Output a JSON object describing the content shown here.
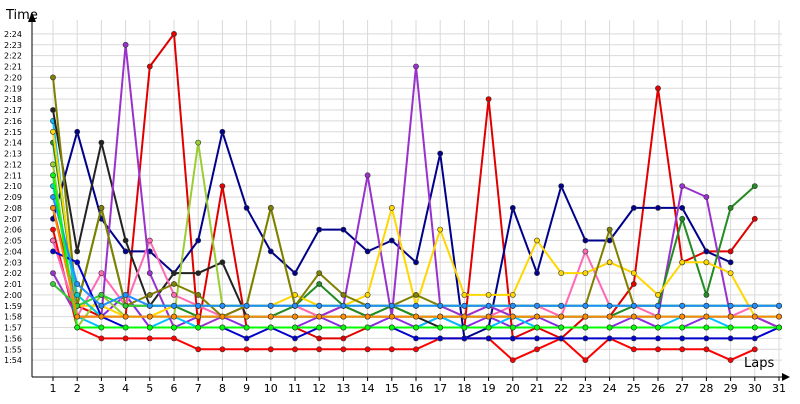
{
  "chart_data": {
    "type": "line",
    "title": "",
    "xlabel": "Laps",
    "ylabel": "Time",
    "x": [
      1,
      2,
      3,
      4,
      5,
      6,
      7,
      8,
      9,
      10,
      11,
      12,
      13,
      14,
      15,
      16,
      17,
      18,
      19,
      20,
      21,
      22,
      23,
      24,
      25,
      26,
      27,
      28,
      29,
      30,
      31
    ],
    "x_tick_labels": [
      "1",
      "2",
      "3",
      "4",
      "5",
      "6",
      "7",
      "8",
      "9",
      "10",
      "11",
      "12",
      "13",
      "14",
      "15",
      "16",
      "17",
      "18",
      "19",
      "20",
      "21",
      "22",
      "23",
      "24",
      "25",
      "26",
      "27",
      "28",
      "29",
      "30",
      "31"
    ],
    "y_unit": "seconds (lap time)",
    "y_tick_labels": [
      "1:54",
      "1:55",
      "1:56",
      "1:57",
      "1:58",
      "1:59",
      "2:00",
      "2:01",
      "2:02",
      "2:03",
      "2:04",
      "2:05",
      "2:06",
      "2:07",
      "2:08",
      "2:09",
      "2:10",
      "2:11",
      "2:12",
      "2:13",
      "2:14",
      "2:15",
      "2:16",
      "2:17",
      "2:18",
      "2:19",
      "2:20",
      "2:21",
      "2:22",
      "2:23",
      "2:24"
    ],
    "ylim": [
      113,
      145
    ],
    "grid": true,
    "legend": "none",
    "series": [
      {
        "color": "#e00000",
        "values": [
          128,
          119,
          118,
          118,
          141,
          144,
          117,
          130,
          117,
          117,
          117,
          116,
          116,
          117,
          117,
          117,
          117,
          117,
          138,
          116,
          117,
          116,
          118,
          118,
          121,
          139,
          123,
          124,
          124,
          127,
          null
        ]
      },
      {
        "color": "#ff0000",
        "values": [
          126,
          117,
          116,
          116,
          116,
          116,
          115,
          115,
          115,
          115,
          115,
          115,
          115,
          115,
          115,
          115,
          116,
          116,
          116,
          114,
          115,
          116,
          114,
          116,
          115,
          115,
          115,
          115,
          114,
          115,
          null
        ]
      },
      {
        "color": "#8a2be2",
        "values": [
          125,
          118,
          118,
          120,
          117,
          117,
          118,
          118,
          117,
          117,
          117,
          118,
          117,
          117,
          118,
          117,
          118,
          117,
          118,
          117,
          118,
          117,
          117,
          117,
          118,
          117,
          117,
          118,
          118,
          118,
          117
        ]
      },
      {
        "color": "#00bfff",
        "values": [
          136,
          118,
          117,
          117,
          117,
          118,
          117,
          117,
          117,
          117,
          117,
          117,
          117,
          117,
          117,
          117,
          118,
          117,
          117,
          118,
          117,
          117,
          117,
          117,
          117,
          117,
          118,
          118,
          117,
          117,
          117
        ]
      },
      {
        "color": "#00008b",
        "values": [
          127,
          135,
          127,
          124,
          124,
          122,
          125,
          135,
          128,
          124,
          122,
          126,
          126,
          124,
          125,
          123,
          133,
          116,
          117,
          128,
          122,
          130,
          125,
          125,
          128,
          128,
          128,
          124,
          123,
          null,
          null
        ]
      },
      {
        "color": "#222222",
        "values": [
          137,
          124,
          134,
          125,
          119,
          122,
          122,
          123,
          118,
          118,
          118,
          118,
          118,
          118,
          118,
          118,
          117,
          117,
          117,
          117,
          117,
          117,
          117,
          117,
          117,
          117,
          117,
          117,
          117,
          null,
          null
        ]
      },
      {
        "color": "#9acd32",
        "values": [
          132,
          117,
          120,
          118,
          118,
          118,
          134,
          119,
          119,
          128,
          119,
          118,
          118,
          118,
          119,
          118,
          118,
          118,
          118,
          118,
          118,
          118,
          118,
          118,
          118,
          118,
          118,
          118,
          118,
          118,
          118
        ]
      },
      {
        "color": "#ff69b4",
        "values": [
          125,
          118,
          122,
          119,
          125,
          120,
          119,
          118,
          119,
          119,
          119,
          118,
          119,
          118,
          118,
          118,
          118,
          118,
          118,
          119,
          119,
          118,
          124,
          119,
          119,
          118,
          118,
          118,
          118,
          119,
          119
        ]
      },
      {
        "color": "#9932cc",
        "values": [
          122,
          118,
          118,
          143,
          122,
          117,
          117,
          118,
          118,
          118,
          118,
          118,
          119,
          131,
          118,
          141,
          119,
          118,
          119,
          118,
          118,
          118,
          118,
          118,
          118,
          118,
          130,
          129,
          118,
          118,
          117
        ]
      },
      {
        "color": "#228b22",
        "values": [
          134,
          119,
          128,
          119,
          119,
          119,
          118,
          118,
          118,
          118,
          119,
          121,
          119,
          118,
          119,
          118,
          118,
          118,
          118,
          118,
          118,
          118,
          118,
          118,
          119,
          119,
          127,
          120,
          128,
          130,
          null
        ]
      },
      {
        "color": "#ffd700",
        "values": [
          135,
          119,
          119,
          118,
          118,
          119,
          119,
          119,
          119,
          119,
          120,
          119,
          119,
          120,
          128,
          119,
          126,
          120,
          120,
          120,
          125,
          122,
          122,
          123,
          122,
          120,
          123,
          123,
          122,
          118,
          null
        ]
      },
      {
        "color": "#808000",
        "values": [
          140,
          119,
          128,
          119,
          120,
          121,
          120,
          118,
          119,
          128,
          119,
          122,
          120,
          119,
          119,
          120,
          119,
          119,
          119,
          119,
          119,
          119,
          119,
          126,
          119,
          119,
          119,
          119,
          119,
          119,
          119
        ]
      },
      {
        "color": "#00ced1",
        "values": [
          130,
          120,
          118,
          118,
          118,
          118,
          118,
          118,
          118,
          118,
          118,
          118,
          118,
          118,
          118,
          118,
          118,
          118,
          118,
          118,
          118,
          118,
          118,
          118,
          118,
          118,
          118,
          118,
          118,
          118,
          118
        ]
      },
      {
        "color": "#32cd32",
        "values": [
          121,
          119,
          120,
          119,
          119,
          119,
          119,
          119,
          119,
          119,
          119,
          119,
          119,
          119,
          119,
          119,
          119,
          119,
          119,
          119,
          119,
          119,
          119,
          119,
          119,
          119,
          119,
          119,
          119,
          119,
          119
        ]
      },
      {
        "color": "#0000cd",
        "values": [
          124,
          123,
          118,
          117,
          117,
          117,
          117,
          117,
          116,
          117,
          116,
          117,
          117,
          117,
          117,
          116,
          116,
          116,
          116,
          116,
          116,
          116,
          116,
          116,
          116,
          116,
          116,
          116,
          116,
          116,
          117
        ]
      },
      {
        "color": "#1e90ff",
        "values": [
          129,
          121,
          119,
          120,
          119,
          119,
          119,
          119,
          119,
          119,
          119,
          119,
          119,
          119,
          119,
          119,
          119,
          119,
          119,
          119,
          119,
          119,
          119,
          119,
          119,
          119,
          119,
          119,
          119,
          119,
          119
        ]
      },
      {
        "color": "#00ff00",
        "values": [
          131,
          117,
          117,
          117,
          117,
          117,
          117,
          117,
          117,
          117,
          117,
          117,
          117,
          117,
          117,
          117,
          117,
          117,
          117,
          117,
          117,
          117,
          117,
          117,
          117,
          117,
          117,
          117,
          117,
          117,
          117
        ]
      },
      {
        "color": "#ff8c00",
        "values": [
          128,
          118,
          118,
          118,
          118,
          118,
          118,
          118,
          118,
          118,
          118,
          118,
          118,
          118,
          118,
          118,
          118,
          118,
          118,
          118,
          118,
          118,
          118,
          118,
          118,
          118,
          118,
          118,
          118,
          118,
          118
        ]
      }
    ]
  }
}
